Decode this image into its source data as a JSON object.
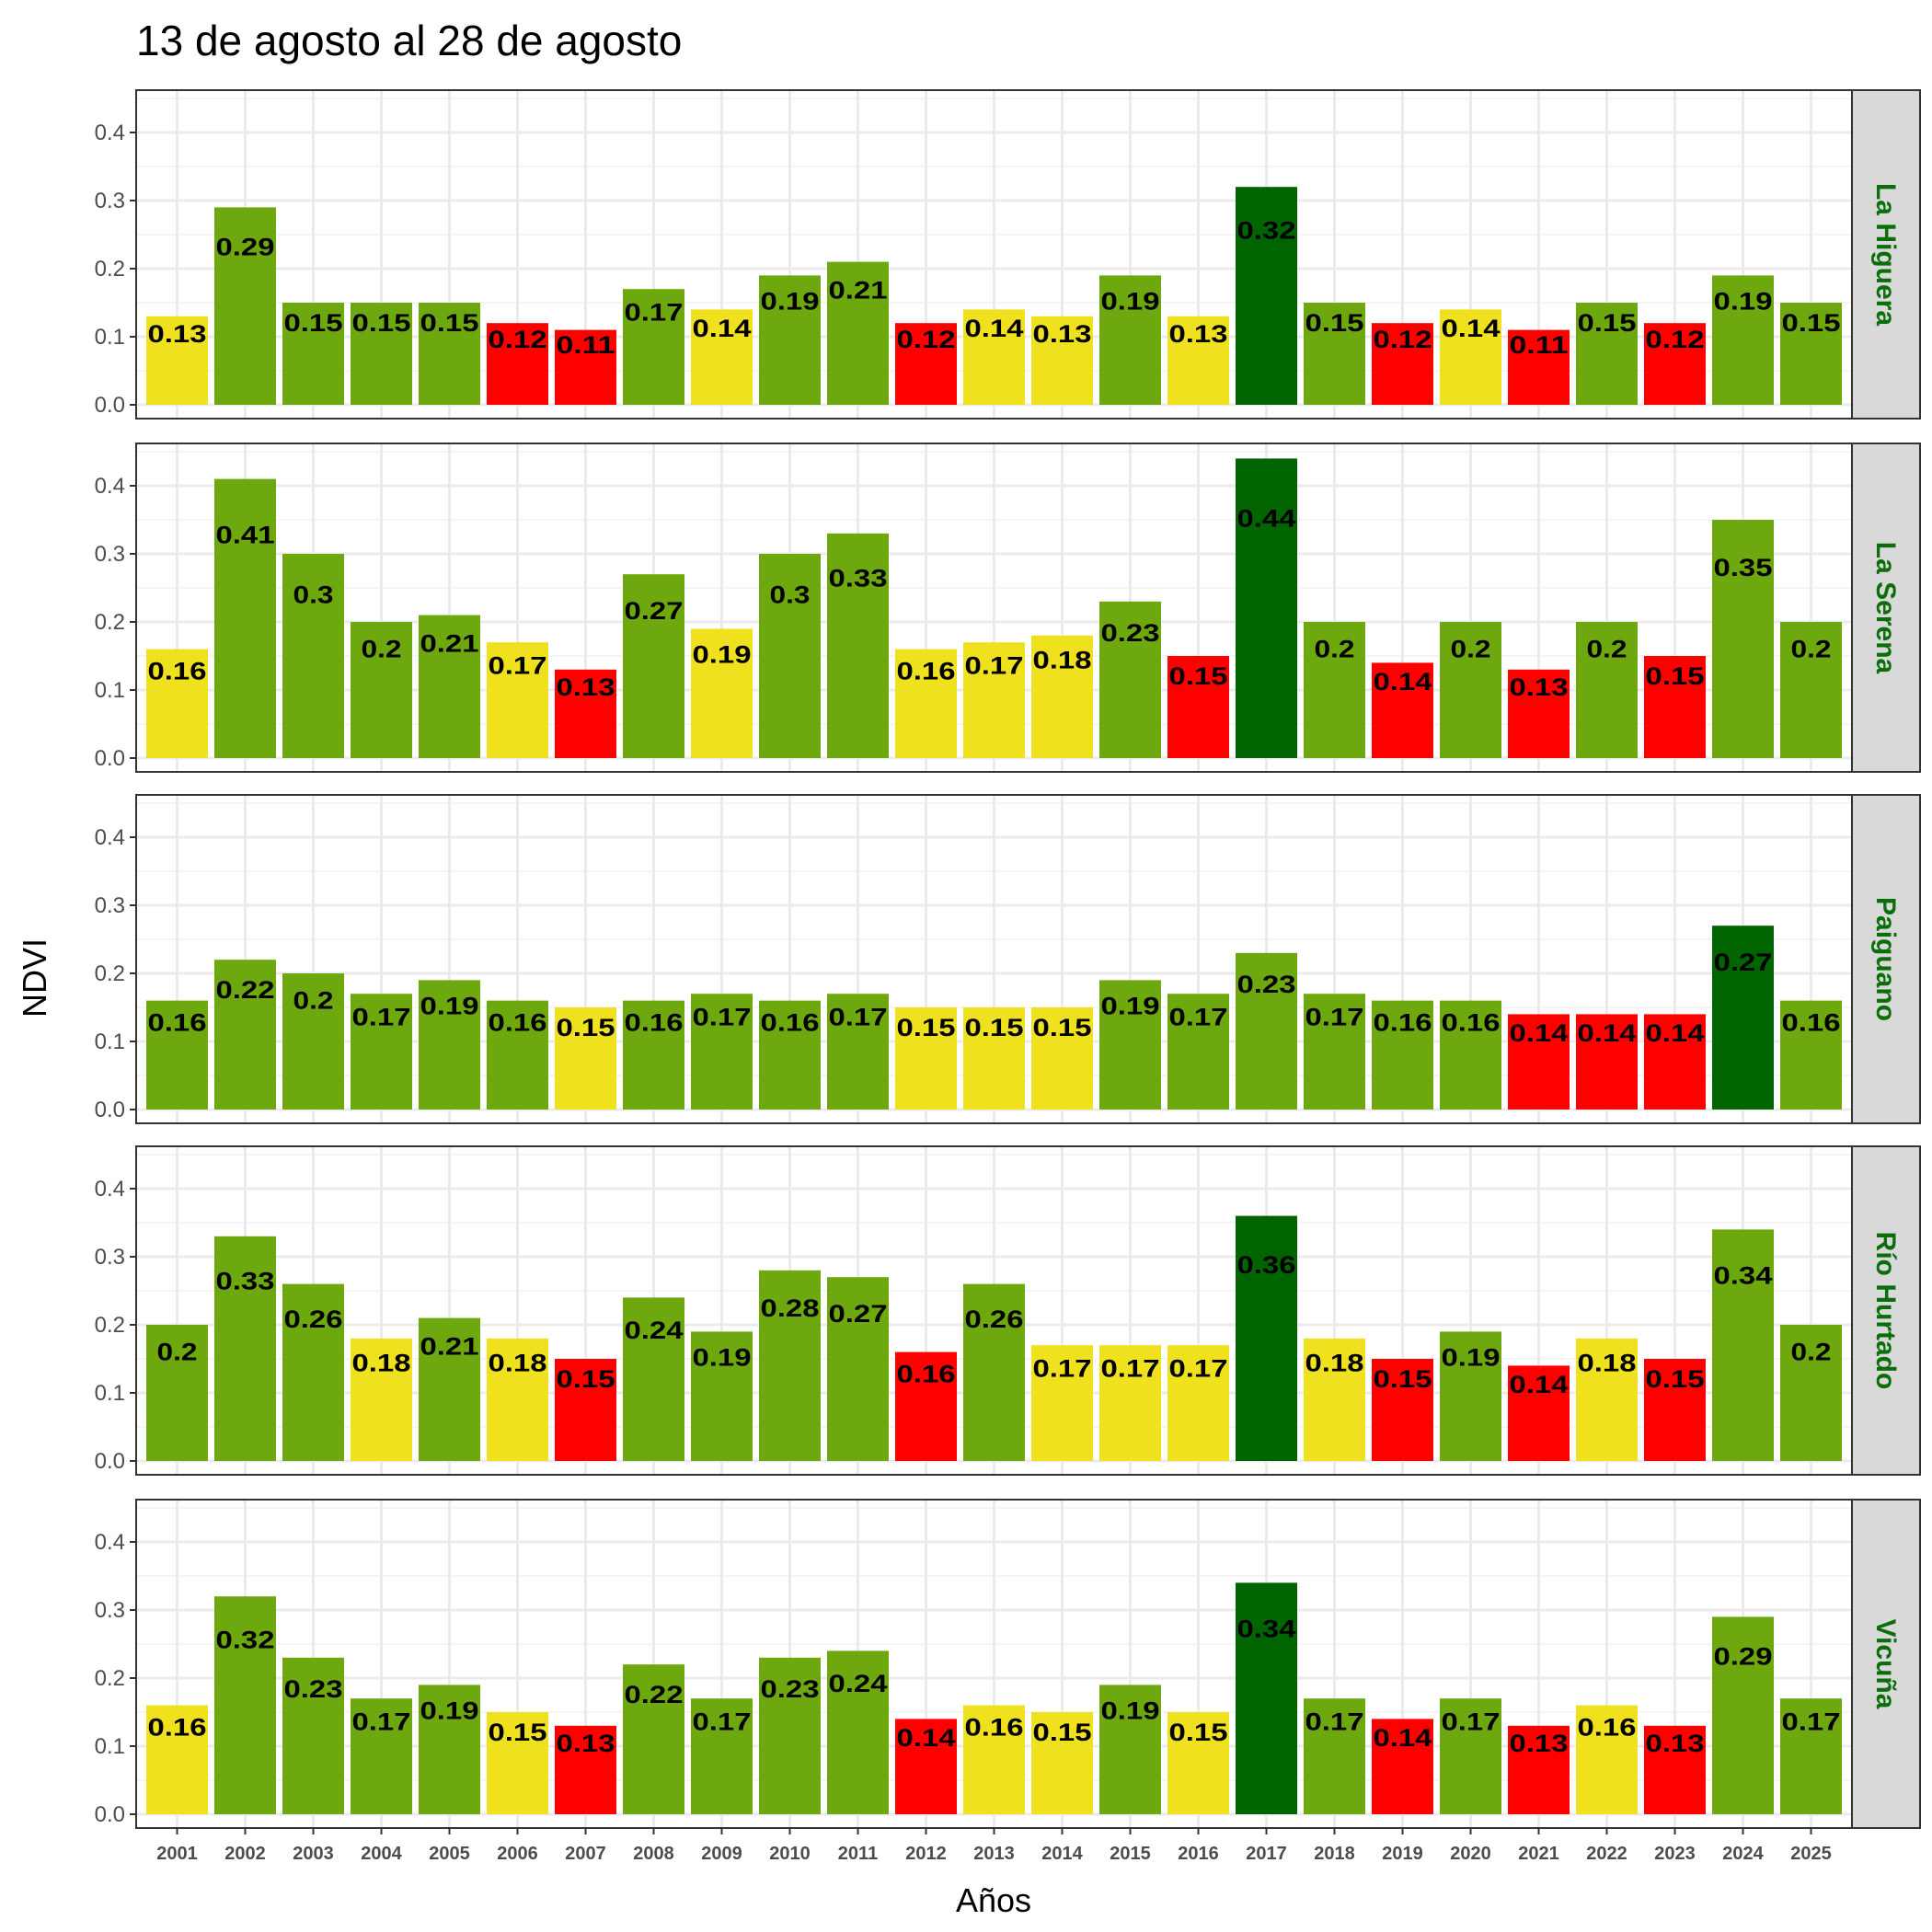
{
  "chart_data": {
    "type": "bar",
    "title": "13 de agosto al 28 de agosto",
    "xlabel": "Años",
    "ylabel": "NDVI",
    "ylim": [
      0,
      0.45
    ],
    "yticks": [
      "0.0",
      "0.1",
      "0.2",
      "0.3",
      "0.4"
    ],
    "ytick_values": [
      0,
      0.1,
      0.2,
      0.3,
      0.4
    ],
    "grid": true,
    "categories": [
      "2001",
      "2002",
      "2003",
      "2004",
      "2005",
      "2006",
      "2007",
      "2008",
      "2009",
      "2010",
      "2011",
      "2012",
      "2013",
      "2014",
      "2015",
      "2016",
      "2017",
      "2018",
      "2019",
      "2020",
      "2021",
      "2022",
      "2023",
      "2024",
      "2025"
    ],
    "class_colors": {
      "Y": "#F0E11E",
      "G": "#6EA80F",
      "R": "#FF0000",
      "D": "#006400"
    },
    "strip_text_color": "#0B6E0B",
    "panels": [
      {
        "name": "La Higuera",
        "values": [
          0.13,
          0.29,
          0.15,
          0.15,
          0.15,
          0.12,
          0.11,
          0.17,
          0.14,
          0.19,
          0.21,
          0.12,
          0.14,
          0.13,
          0.19,
          0.13,
          0.32,
          0.15,
          0.12,
          0.14,
          0.11,
          0.15,
          0.12,
          0.19,
          0.15
        ],
        "classes": [
          "Y",
          "G",
          "G",
          "G",
          "G",
          "R",
          "R",
          "G",
          "Y",
          "G",
          "G",
          "R",
          "Y",
          "Y",
          "G",
          "Y",
          "D",
          "G",
          "R",
          "Y",
          "R",
          "G",
          "R",
          "G",
          "G"
        ]
      },
      {
        "name": "La Serena",
        "values": [
          0.16,
          0.41,
          0.3,
          0.2,
          0.21,
          0.17,
          0.13,
          0.27,
          0.19,
          0.3,
          0.33,
          0.16,
          0.17,
          0.18,
          0.23,
          0.15,
          0.44,
          0.2,
          0.14,
          0.2,
          0.13,
          0.2,
          0.15,
          0.35,
          0.2
        ],
        "classes": [
          "Y",
          "G",
          "G",
          "G",
          "G",
          "Y",
          "R",
          "G",
          "Y",
          "G",
          "G",
          "Y",
          "Y",
          "Y",
          "G",
          "R",
          "D",
          "G",
          "R",
          "G",
          "R",
          "G",
          "R",
          "G",
          "G"
        ]
      },
      {
        "name": "Paiguano",
        "values": [
          0.16,
          0.22,
          0.2,
          0.17,
          0.19,
          0.16,
          0.15,
          0.16,
          0.17,
          0.16,
          0.17,
          0.15,
          0.15,
          0.15,
          0.19,
          0.17,
          0.23,
          0.17,
          0.16,
          0.16,
          0.14,
          0.14,
          0.14,
          0.27,
          0.16
        ],
        "classes": [
          "G",
          "G",
          "G",
          "G",
          "G",
          "G",
          "Y",
          "G",
          "G",
          "G",
          "G",
          "Y",
          "Y",
          "Y",
          "G",
          "G",
          "G",
          "G",
          "G",
          "G",
          "R",
          "R",
          "R",
          "D",
          "G"
        ]
      },
      {
        "name": "Río Hurtado",
        "values": [
          0.2,
          0.33,
          0.26,
          0.18,
          0.21,
          0.18,
          0.15,
          0.24,
          0.19,
          0.28,
          0.27,
          0.16,
          0.26,
          0.17,
          0.17,
          0.17,
          0.36,
          0.18,
          0.15,
          0.19,
          0.14,
          0.18,
          0.15,
          0.34,
          0.2
        ],
        "classes": [
          "G",
          "G",
          "G",
          "Y",
          "G",
          "Y",
          "R",
          "G",
          "G",
          "G",
          "G",
          "R",
          "G",
          "Y",
          "Y",
          "Y",
          "D",
          "Y",
          "R",
          "G",
          "R",
          "Y",
          "R",
          "G",
          "G"
        ]
      },
      {
        "name": "Vicuña",
        "values": [
          0.16,
          0.32,
          0.23,
          0.17,
          0.19,
          0.15,
          0.13,
          0.22,
          0.17,
          0.23,
          0.24,
          0.14,
          0.16,
          0.15,
          0.19,
          0.15,
          0.34,
          0.17,
          0.14,
          0.17,
          0.13,
          0.16,
          0.13,
          0.29,
          0.17
        ],
        "classes": [
          "Y",
          "G",
          "G",
          "G",
          "G",
          "Y",
          "R",
          "G",
          "G",
          "G",
          "G",
          "R",
          "Y",
          "Y",
          "G",
          "Y",
          "D",
          "G",
          "R",
          "G",
          "R",
          "Y",
          "R",
          "G",
          "G"
        ]
      }
    ]
  }
}
